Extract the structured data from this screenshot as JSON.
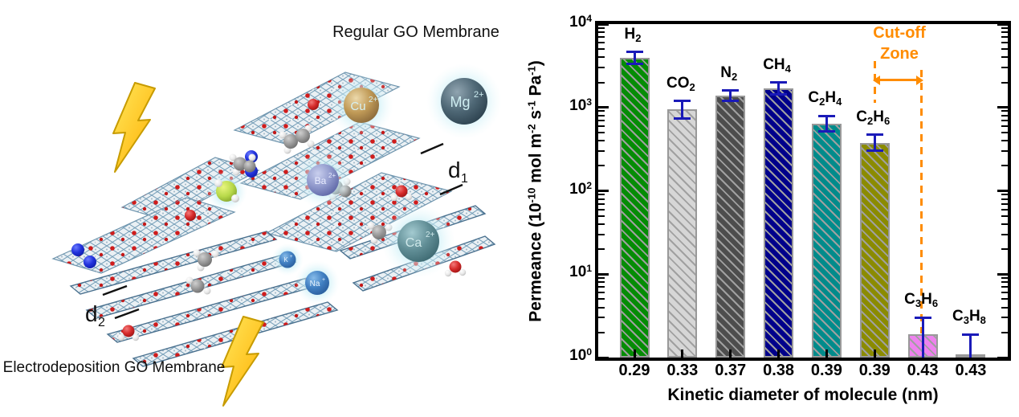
{
  "left_panel": {
    "label_regular": "Regular GO Membrane",
    "label_electro": "Electrodeposition GO Membrane",
    "d1": {
      "base": "d",
      "sub": "1"
    },
    "d2": {
      "base": "d",
      "sub": "2"
    },
    "ions": {
      "cu": {
        "base": "Cu",
        "charge": "2+"
      },
      "mg": {
        "base": "Mg",
        "charge": "2+"
      },
      "ba": {
        "base": "Ba",
        "charge": "2+"
      },
      "ca": {
        "base": "Ca",
        "charge": "2+"
      },
      "na": {
        "base": "Na",
        "charge": "+"
      },
      "k": {
        "base": "K",
        "charge": "+"
      }
    }
  },
  "chart_data": {
    "type": "bar",
    "y_scale": "log",
    "ylim": [
      1,
      10000
    ],
    "grid": false,
    "legend": null,
    "xlabel": "Kinetic diameter of molecule (nm)",
    "ylabel": "Permeance (10⁻¹⁰ mol m⁻² s⁻¹ Pa⁻¹)",
    "ylabel_parts": [
      "Permeance (10",
      "-10",
      " mol m",
      "-2",
      " s",
      "-1",
      " Pa",
      "-1",
      ")"
    ],
    "y_ticks": [
      {
        "base": "10",
        "exp": "0"
      },
      {
        "base": "10",
        "exp": "1"
      },
      {
        "base": "10",
        "exp": "2"
      },
      {
        "base": "10",
        "exp": "3"
      },
      {
        "base": "10",
        "exp": "4"
      }
    ],
    "categories": [
      "0.29",
      "0.33",
      "0.37",
      "0.38",
      "0.39",
      "0.39",
      "0.43",
      "0.43"
    ],
    "series": [
      {
        "label": "H2",
        "label_parts": [
          "H",
          "2"
        ],
        "kinetic_diameter_nm": 0.29,
        "value": 3900,
        "err_hi": 4600,
        "err_lo": 3300,
        "color": "#058c05"
      },
      {
        "label": "CO2",
        "label_parts": [
          "CO",
          "2"
        ],
        "kinetic_diameter_nm": 0.33,
        "value": 950,
        "err_hi": 1200,
        "err_lo": 740,
        "color": "#d6d6d6"
      },
      {
        "label": "N2",
        "label_parts": [
          "N",
          "2"
        ],
        "kinetic_diameter_nm": 0.37,
        "value": 1400,
        "err_hi": 1600,
        "err_lo": 1190,
        "color": "#4d4d4d"
      },
      {
        "label": "CH4",
        "label_parts": [
          "CH",
          "4"
        ],
        "kinetic_diameter_nm": 0.38,
        "value": 1700,
        "err_hi": 2000,
        "err_lo": 1450,
        "color": "#00008b"
      },
      {
        "label": "C2H4",
        "label_parts": [
          "C",
          "2",
          "H",
          "4"
        ],
        "kinetic_diameter_nm": 0.39,
        "value": 640,
        "err_hi": 790,
        "err_lo": 520,
        "color": "#008b8b"
      },
      {
        "label": "C2H6",
        "label_parts": [
          "C",
          "2",
          "H",
          "6"
        ],
        "kinetic_diameter_nm": 0.39,
        "value": 375,
        "err_hi": 470,
        "err_lo": 300,
        "color": "#8b8b00"
      },
      {
        "label": "C3H6",
        "label_parts": [
          "C",
          "3",
          "H",
          "6"
        ],
        "kinetic_diameter_nm": 0.43,
        "value": 1.9,
        "err_hi": 3.0,
        "err_lo": 1.0,
        "color": "#ee82ee"
      },
      {
        "label": "C3H8",
        "label_parts": [
          "C",
          "3",
          "H",
          "8"
        ],
        "kinetic_diameter_nm": 0.43,
        "value": 1.1,
        "err_hi": 1.9,
        "err_lo": 1.0,
        "color": "#ff8c00"
      }
    ],
    "annotation": {
      "line1": "Cut-off",
      "line2": "Zone",
      "color": "#ff8c00",
      "x_from_nm": 0.39,
      "x_to_nm": 0.43
    },
    "error_bar_color": "#1a1ab8",
    "hatch_color": "#a0a0a0",
    "bar_border_color": "#999999",
    "axis_color": "#000000"
  }
}
